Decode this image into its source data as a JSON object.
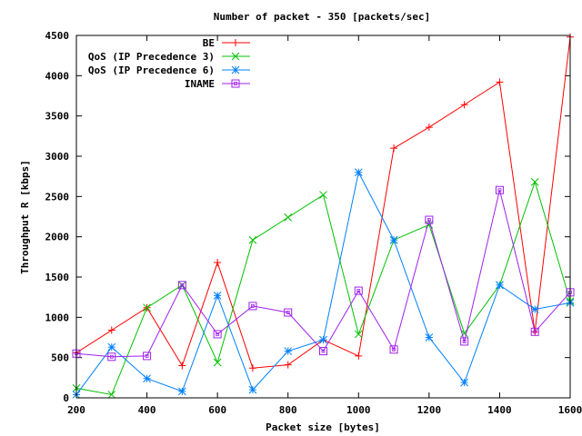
{
  "chart_data": {
    "type": "line",
    "title": "Number of packet - 350 [packets/sec]",
    "xlabel": "Packet size [bytes]",
    "ylabel": "Throughput R [kbps]",
    "xlim": [
      200,
      1600
    ],
    "ylim": [
      0,
      4500
    ],
    "xticks": [
      200,
      400,
      600,
      800,
      1000,
      1200,
      1400,
      1600
    ],
    "yticks": [
      0,
      500,
      1000,
      1500,
      2000,
      2500,
      3000,
      3500,
      4000,
      4500
    ],
    "grid": false,
    "legend_position": "top-right",
    "x": [
      200,
      300,
      400,
      500,
      600,
      700,
      800,
      900,
      1000,
      1100,
      1200,
      1300,
      1400,
      1500,
      1600
    ],
    "series": [
      {
        "name": "BE",
        "color": "#ff0000",
        "marker": "plus",
        "values": [
          560,
          840,
          1120,
          400,
          1680,
          370,
          410,
          720,
          520,
          3100,
          3360,
          3640,
          3920,
          820,
          4480
        ]
      },
      {
        "name": "QoS (IP Precedence 3)",
        "color": "#00c000",
        "marker": "cross",
        "values": [
          120,
          40,
          1120,
          1400,
          440,
          1960,
          2240,
          2520,
          790,
          1960,
          2150,
          800,
          1400,
          2680,
          1200
        ]
      },
      {
        "name": "QoS (IP Precedence 6)",
        "color": "#0080ff",
        "marker": "star",
        "values": [
          40,
          630,
          240,
          80,
          1270,
          100,
          580,
          720,
          2800,
          1960,
          750,
          190,
          1400,
          1100,
          1180
        ]
      },
      {
        "name": "INAME",
        "color": "#a020f0",
        "marker": "box",
        "values": [
          550,
          510,
          520,
          1400,
          790,
          1140,
          1060,
          580,
          1330,
          600,
          2210,
          700,
          2580,
          820,
          1310
        ]
      }
    ]
  }
}
